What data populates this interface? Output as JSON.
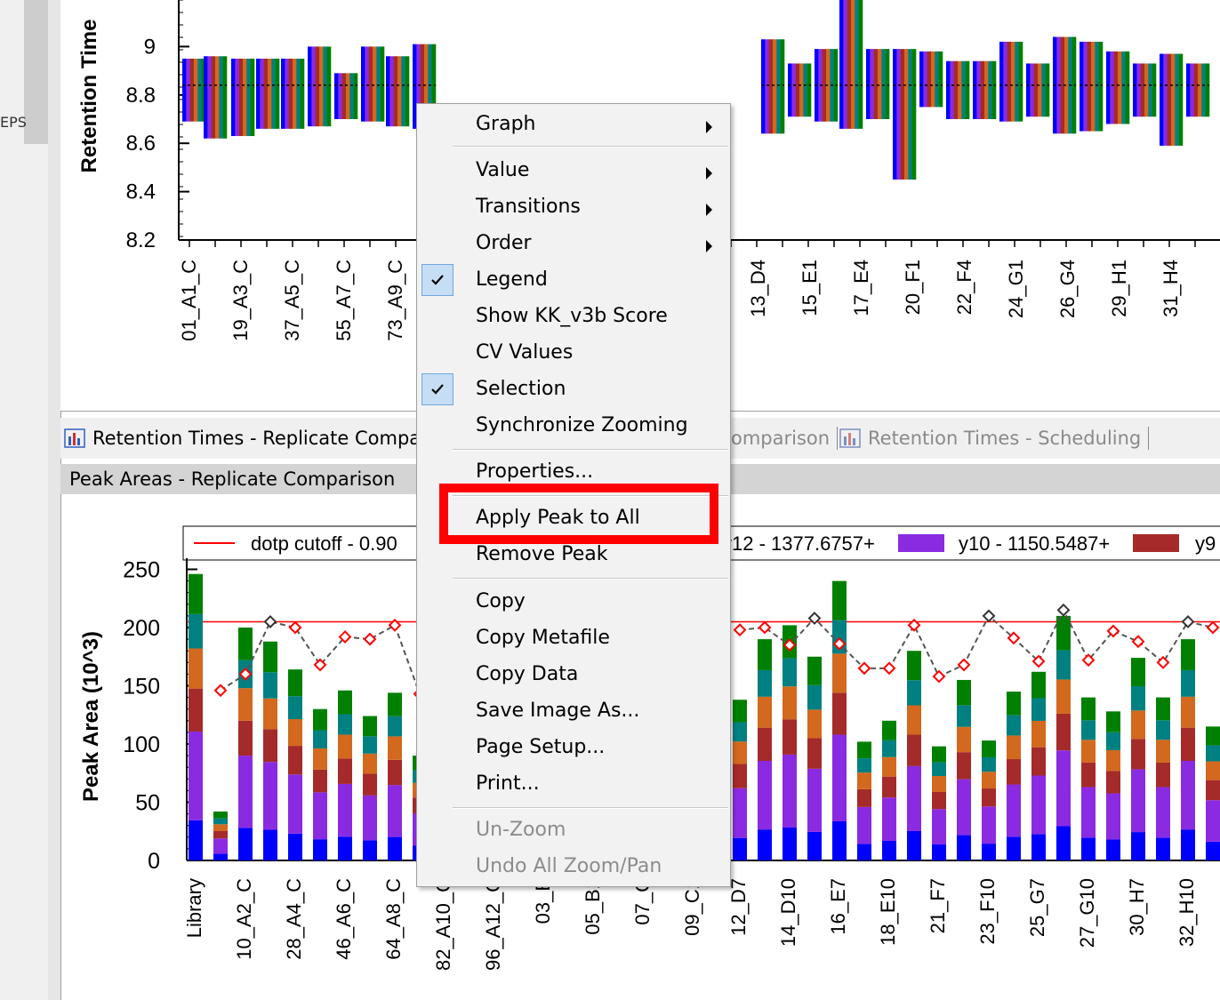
{
  "left_panel": {
    "clipped_text": "EPS"
  },
  "top_chart": {
    "ylabel": "Retention Time",
    "y_ticks": [
      "8.2",
      "8.4",
      "8.6",
      "8.8",
      "9"
    ],
    "x_labels_left": [
      "01_A1_C",
      "19_A3_C",
      "37_A5_C",
      "55_A7_C",
      "73_A9_C"
    ],
    "x_labels_right": [
      "13_D4",
      "15_E1",
      "17_E4",
      "20_F1",
      "22_F4",
      "24_G1",
      "26_G4",
      "29_H1",
      "31_H4"
    ]
  },
  "tabs": [
    {
      "label": "Retention Times - Replicate Compari",
      "active": true
    },
    {
      "label": "omparison",
      "active": false
    },
    {
      "label": "Retention Times - Scheduling",
      "active": false
    }
  ],
  "pane_title": "Peak Areas - Replicate Comparison",
  "chart_data": {
    "type": "bar",
    "ylabel": "Peak Area (10^3)",
    "ylim": [
      0,
      250
    ],
    "y_ticks": [
      "0",
      "50",
      "100",
      "150",
      "200",
      "250"
    ],
    "legend": [
      {
        "name": "dotp cutoff - 0.90",
        "color": "#ff0000"
      },
      {
        "name": "y12 - 1377.6757+",
        "color": "#000000"
      },
      {
        "name": "y10 - 1150.5487+",
        "color": "#8a2be2"
      },
      {
        "name": "y9",
        "color": "#a52a2a"
      }
    ],
    "cutoff_line": 205,
    "categories_left": [
      "Library",
      "10_A2_C",
      "28_A4_C",
      "46_A6_C",
      "64_A8_C",
      "82_A10_C"
    ],
    "categories_middle": [
      "96_A12_C",
      "03_B",
      "05_B1",
      "07_C",
      "09_C1"
    ],
    "categories_right": [
      "12_D7",
      "14_D10",
      "16_E7",
      "18_E10",
      "21_F7",
      "23_F10",
      "25_G7",
      "27_G10",
      "30_H7",
      "32_H10"
    ],
    "left_totals": [
      246,
      42,
      200,
      188,
      164,
      130,
      146,
      124,
      144,
      90
    ],
    "right_totals": [
      138,
      190,
      202,
      175,
      240,
      102,
      120,
      180,
      98,
      155,
      103,
      145,
      162,
      210,
      140,
      128,
      174,
      140,
      190,
      115
    ],
    "dotp_left": [
      146,
      160,
      205,
      200,
      168,
      192,
      190,
      202,
      143
    ],
    "dotp_right": [
      198,
      200,
      185,
      208,
      186,
      165,
      165,
      202,
      158,
      168,
      210,
      191,
      171,
      215,
      172,
      197,
      188,
      170,
      205,
      200
    ],
    "segment_colors": [
      "#0000ff",
      "#8a2be2",
      "#a52a2a",
      "#d2691e",
      "#008080",
      "#008000"
    ]
  },
  "context_menu": {
    "items": [
      {
        "label": "Graph",
        "submenu": true
      },
      {
        "label": "Value",
        "submenu": true
      },
      {
        "label": "Transitions",
        "submenu": true
      },
      {
        "label": "Order",
        "submenu": true
      },
      {
        "label": "Legend",
        "checked": true
      },
      {
        "label": "Show KK_v3b Score"
      },
      {
        "label": "CV Values"
      },
      {
        "label": "Selection",
        "checked": true
      },
      {
        "label": "Synchronize Zooming"
      },
      {
        "label": "Properties..."
      },
      {
        "label": "Apply Peak to All"
      },
      {
        "label": "Remove Peak"
      },
      {
        "label": "Copy"
      },
      {
        "label": "Copy Metafile"
      },
      {
        "label": "Copy Data"
      },
      {
        "label": "Save Image As..."
      },
      {
        "label": "Page Setup..."
      },
      {
        "label": "Print..."
      },
      {
        "label": "Un-Zoom",
        "disabled": true
      },
      {
        "label": "Undo All Zoom/Pan",
        "disabled": true
      }
    ]
  },
  "highlight": {
    "target": "Apply Peak to All",
    "color": "#ff0000"
  }
}
